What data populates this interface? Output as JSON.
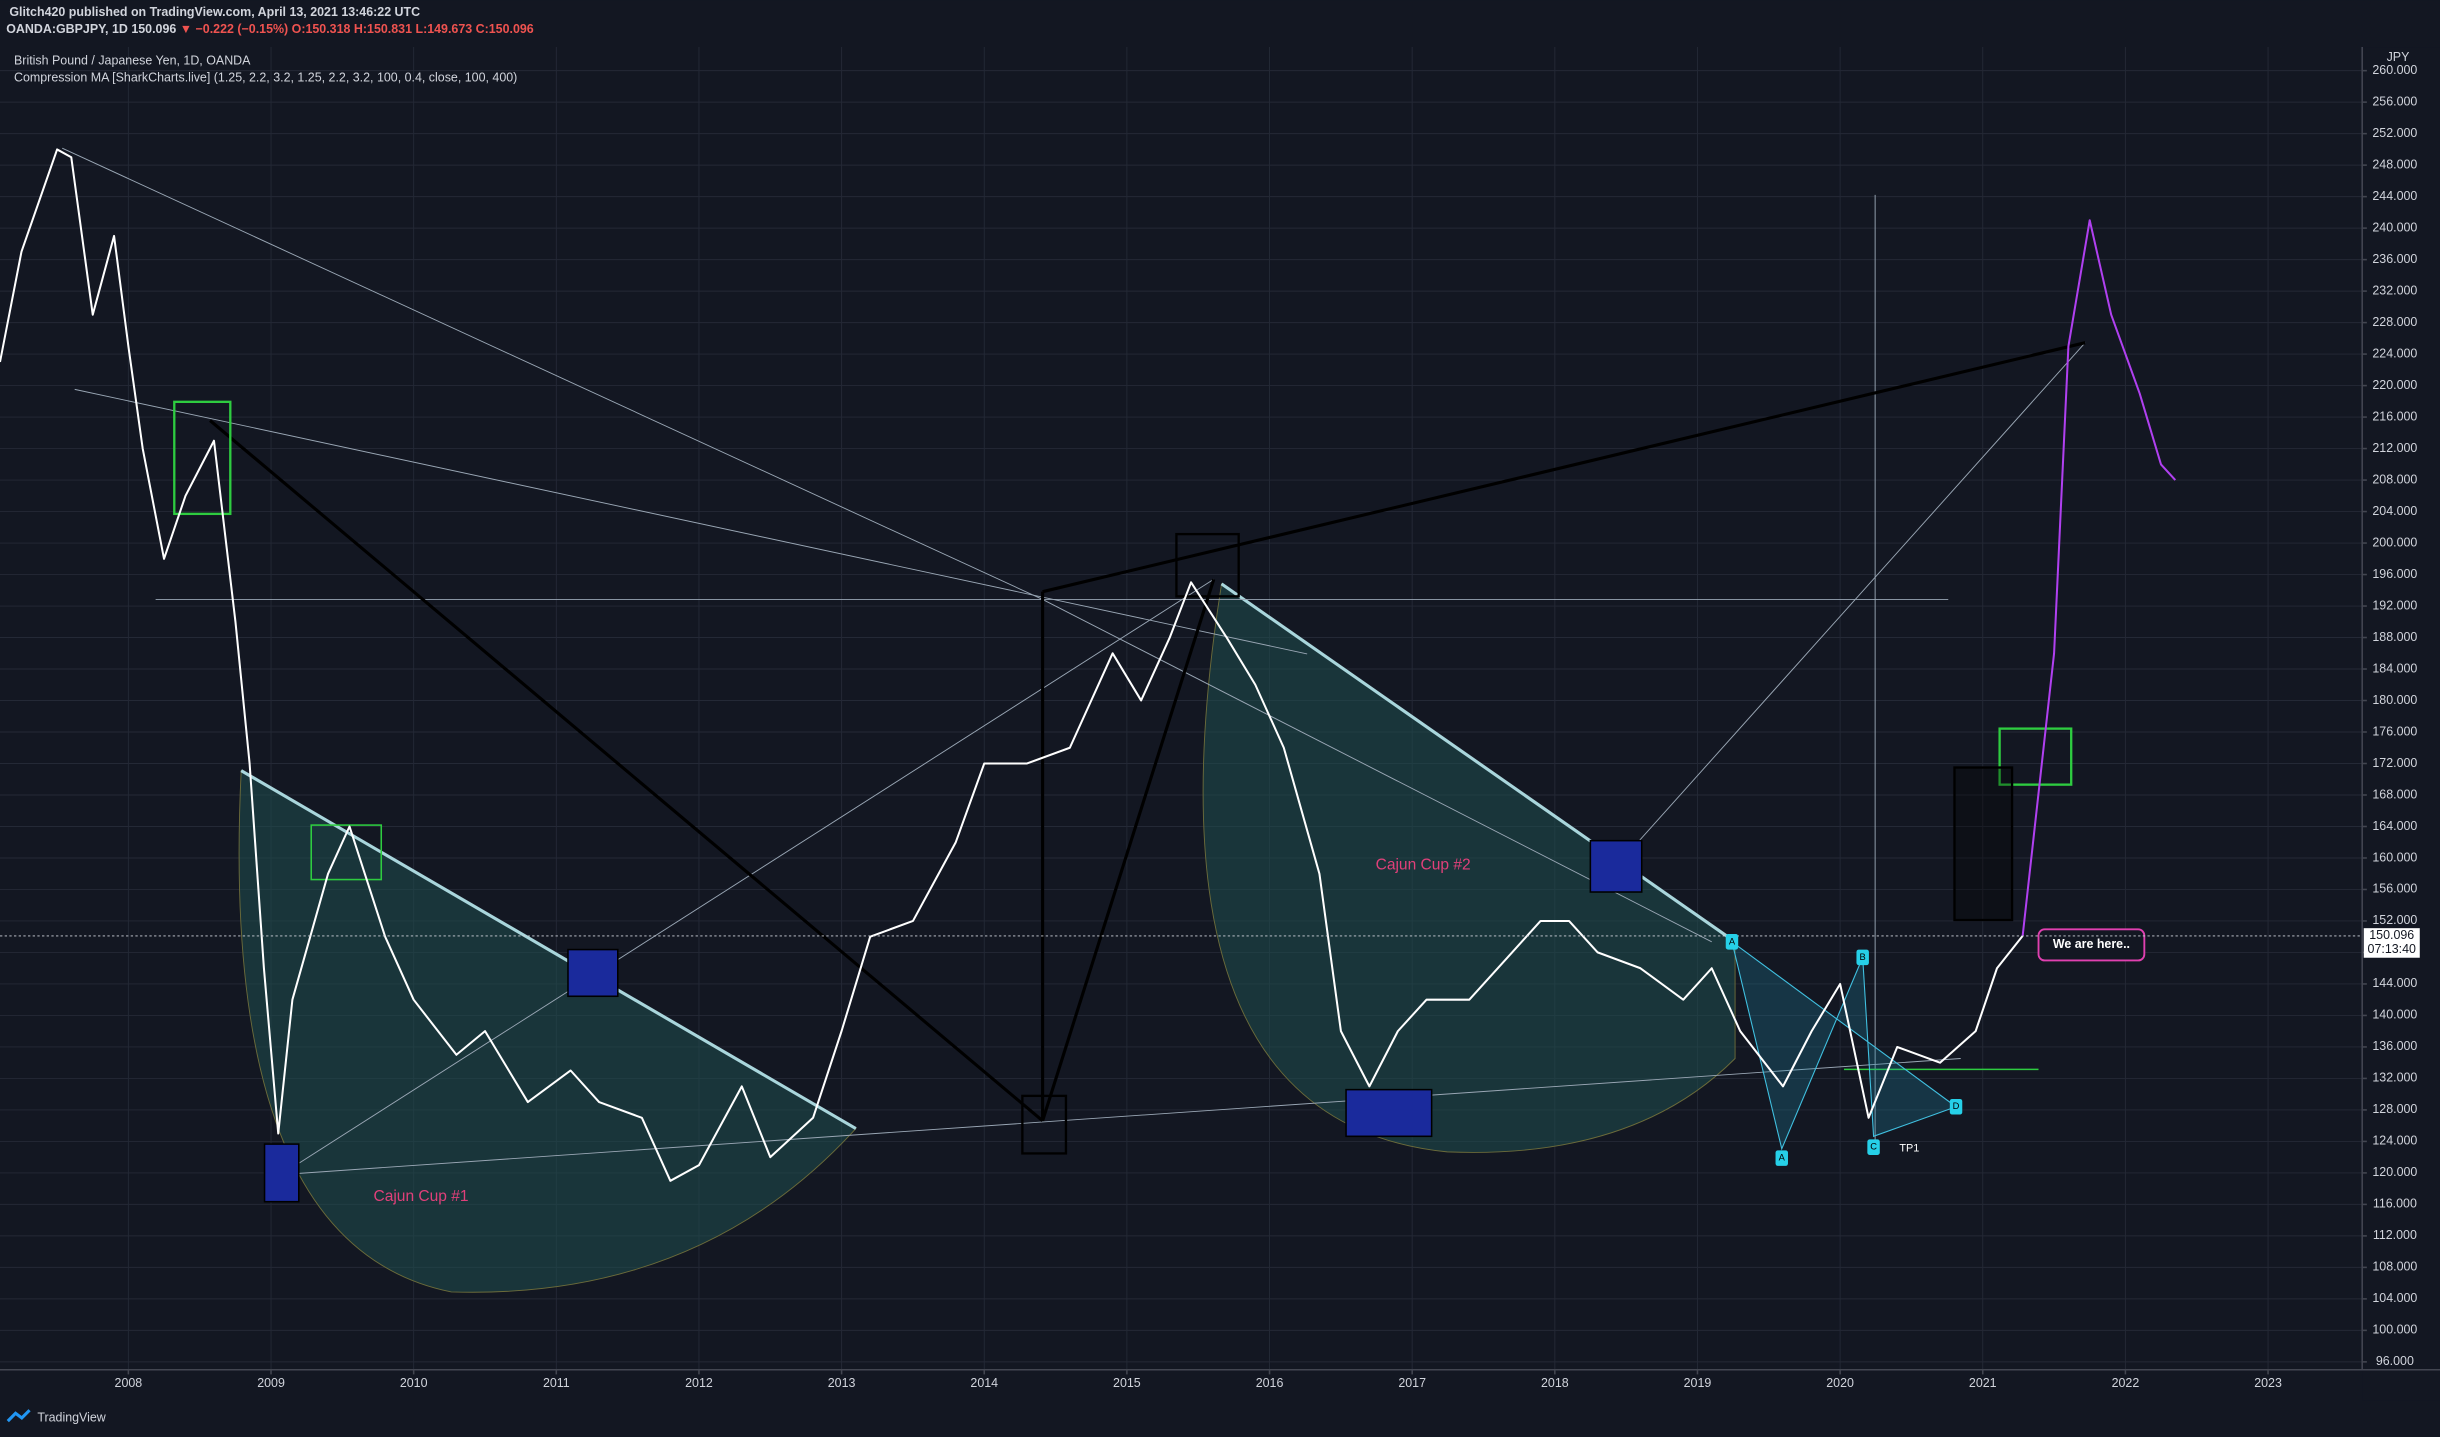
{
  "header": {
    "publisher": "Glitch420 published on TradingView.com, April 13, 2021 13:46:22 UTC",
    "symbol": "OANDA:GBPJPY, 1D",
    "price": "150.096",
    "change": "▼ −0.222 (−0.15%)",
    "ohlc": [
      "O:150.318",
      "H:150.831",
      "L:149.673",
      "C:150.096"
    ]
  },
  "chart_data": {
    "type": "line",
    "title": "British Pound / Japanese Yen, 1D, OANDA",
    "subtitle": "Compression MA [SharkCharts.live] (1.25, 2.2, 3.2, 1.25, 2.2, 3.2, 100, 0.4, close, 100, 400)",
    "currency": "JPY",
    "x": [
      2007.1,
      2007.25,
      2007.5,
      2007.6,
      2007.75,
      2007.9,
      2008.0,
      2008.1,
      2008.25,
      2008.4,
      2008.6,
      2008.75,
      2008.85,
      2008.95,
      2009.05,
      2009.15,
      2009.4,
      2009.55,
      2009.8,
      2010.0,
      2010.3,
      2010.5,
      2010.8,
      2011.1,
      2011.3,
      2011.6,
      2011.8,
      2012.0,
      2012.3,
      2012.5,
      2012.8,
      2013.0,
      2013.2,
      2013.5,
      2013.8,
      2014.0,
      2014.3,
      2014.6,
      2014.9,
      2015.1,
      2015.3,
      2015.45,
      2015.7,
      2015.9,
      2016.1,
      2016.35,
      2016.5,
      2016.7,
      2016.9,
      2017.1,
      2017.4,
      2017.7,
      2017.9,
      2018.1,
      2018.3,
      2018.6,
      2018.9,
      2019.1,
      2019.3,
      2019.6,
      2019.8,
      2020.0,
      2020.2,
      2020.4,
      2020.7,
      2020.95,
      2021.1,
      2021.28,
      2021.5,
      2021.6,
      2021.75,
      2021.9,
      2022.1,
      2022.25,
      2022.35
    ],
    "series": [
      {
        "color": "#ffffff",
        "values": [
          223,
          237,
          250,
          249,
          229,
          239,
          225,
          212,
          198,
          206,
          213,
          190,
          172,
          146,
          125,
          142,
          158,
          164,
          150,
          142,
          135,
          138,
          129,
          133,
          129,
          127,
          119,
          121,
          131,
          122,
          127,
          138,
          150,
          152,
          162,
          172,
          172,
          174,
          186,
          180,
          188,
          195,
          188,
          182,
          174,
          158,
          138,
          131,
          138,
          142,
          142,
          148,
          152,
          152,
          148,
          146,
          142,
          146,
          138,
          131,
          138,
          144,
          127,
          136,
          134,
          138,
          146,
          150.096,
          null,
          null,
          null,
          null,
          null,
          null,
          null
        ]
      },
      {
        "color": "#b040f0",
        "values": [
          null,
          null,
          null,
          null,
          null,
          null,
          null,
          null,
          null,
          null,
          null,
          null,
          null,
          null,
          null,
          null,
          null,
          null,
          null,
          null,
          null,
          null,
          null,
          null,
          null,
          null,
          null,
          null,
          null,
          null,
          null,
          null,
          null,
          null,
          null,
          null,
          null,
          null,
          null,
          null,
          null,
          null,
          null,
          null,
          null,
          null,
          null,
          null,
          null,
          null,
          null,
          null,
          null,
          null,
          null,
          null,
          null,
          null,
          null,
          null,
          null,
          null,
          null,
          null,
          null,
          null,
          null,
          150.096,
          186,
          225,
          241,
          229,
          219,
          210,
          208
        ]
      }
    ],
    "xlim": [
      2007.1,
      2023.66
    ],
    "xticks": [
      2008,
      2009,
      2010,
      2011,
      2012,
      2013,
      2014,
      2015,
      2016,
      2017,
      2018,
      2019,
      2020,
      2021,
      2022,
      2023
    ],
    "ylim": [
      95,
      263
    ],
    "yticks": [
      {
        "value": 96,
        "label": "96.000"
      },
      {
        "value": 100,
        "label": "100.000"
      },
      {
        "value": 104,
        "label": "104.000"
      },
      {
        "value": 108,
        "label": "108.000"
      },
      {
        "value": 112,
        "label": "112.000"
      },
      {
        "value": 116,
        "label": "116.000"
      },
      {
        "value": 120,
        "label": "120.000"
      },
      {
        "value": 124,
        "label": "124.000"
      },
      {
        "value": 128,
        "label": "128.000"
      },
      {
        "value": 132,
        "label": "132.000"
      },
      {
        "value": 136,
        "label": "136.000"
      },
      {
        "value": 140,
        "label": "140.000"
      },
      {
        "value": 144,
        "label": "144.000"
      },
      {
        "value": 148,
        "label": "148.000"
      },
      {
        "value": 152,
        "label": "152.000"
      },
      {
        "value": 156,
        "label": "156.000"
      },
      {
        "value": 160,
        "label": "160.000"
      },
      {
        "value": 164,
        "label": "164.000"
      },
      {
        "value": 168,
        "label": "168.000"
      },
      {
        "value": 172,
        "label": "172.000"
      },
      {
        "value": 176,
        "label": "176.000"
      },
      {
        "value": 180,
        "label": "180.000"
      },
      {
        "value": 184,
        "label": "184.000"
      },
      {
        "value": 188,
        "label": "188.000"
      },
      {
        "value": 192,
        "label": "192.000"
      },
      {
        "value": 196,
        "label": "196.000"
      },
      {
        "value": 200,
        "label": "200.000"
      },
      {
        "value": 204,
        "label": "204.000"
      },
      {
        "value": 208,
        "label": "208.000"
      },
      {
        "value": 212,
        "label": "212.000"
      },
      {
        "value": 216,
        "label": "216.000"
      },
      {
        "value": 220,
        "label": "220.000"
      },
      {
        "value": 224,
        "label": "224.000"
      },
      {
        "value": 228,
        "label": "228.000"
      },
      {
        "value": 232,
        "label": "232.000"
      },
      {
        "value": 236,
        "label": "236.000"
      },
      {
        "value": 240,
        "label": "240.000"
      },
      {
        "value": 244,
        "label": "244.000"
      },
      {
        "value": 248,
        "label": "248.000"
      },
      {
        "value": 252,
        "label": "252.000"
      },
      {
        "value": 256,
        "label": "256.000"
      },
      {
        "value": 260,
        "label": "260.000"
      }
    ],
    "grid": true,
    "last_price": {
      "value": 150.096,
      "label": "150.096"
    },
    "countdown": "07:13:40",
    "annotations": [
      "Cajun Cup #1",
      "Cajun Cup #2",
      "We are here..",
      "TP1",
      "A",
      "B",
      "A",
      "C",
      "D"
    ]
  },
  "footer": "TradingView"
}
